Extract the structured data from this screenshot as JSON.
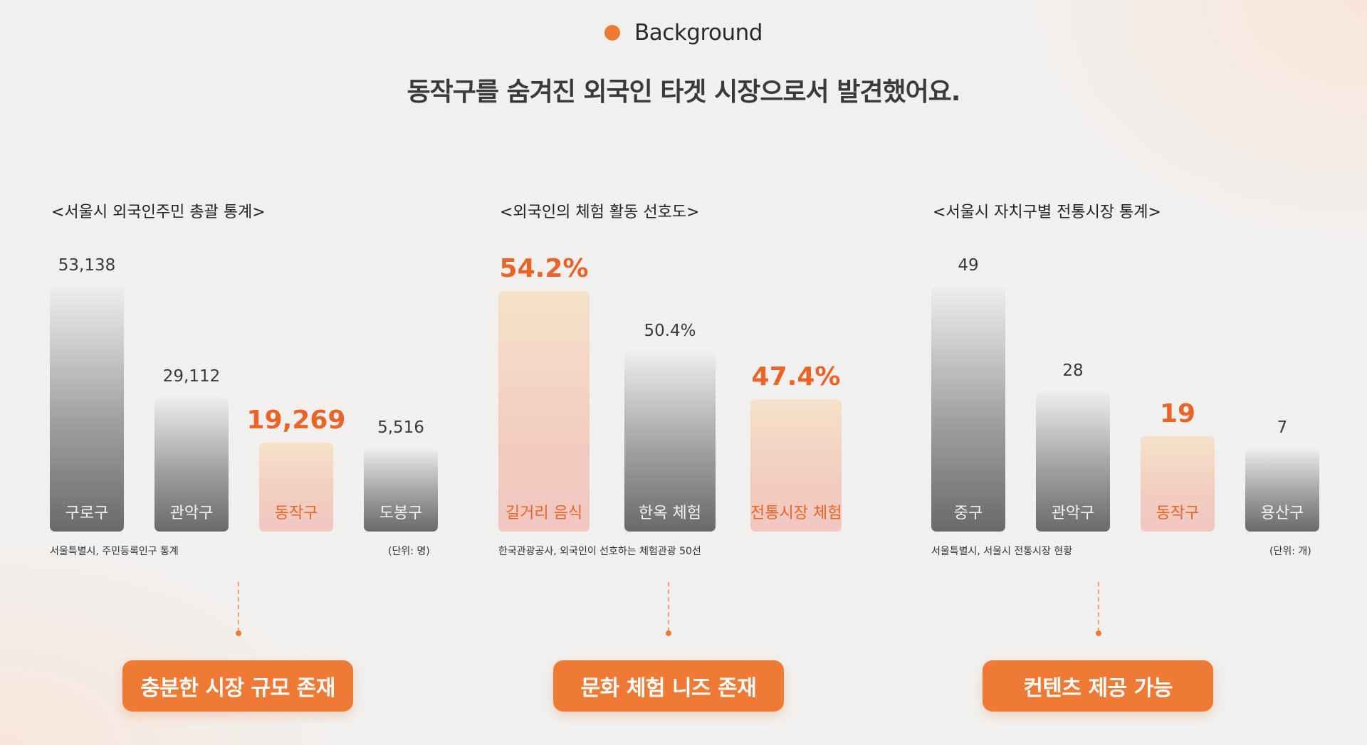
{
  "header": {
    "tag": "Background",
    "headline": "동작구를 숨겨진 외국인 타겟 시장으로서 발견했어요."
  },
  "chart_data": [
    {
      "type": "bar",
      "title": "<서울시 외국인주민 총괄 통계>",
      "categories": [
        "구로구",
        "관악구",
        "동작구",
        "도봉구"
      ],
      "values": [
        53138,
        29112,
        19269,
        5516
      ],
      "value_labels": [
        "53,138",
        "29,112",
        "19,269",
        "5,516"
      ],
      "highlight": [
        false,
        false,
        true,
        false
      ],
      "source": "서울특별시, 주민등록인구 통계",
      "unit": "(단위: 명)",
      "callout": "충분한 시장 규모 존재"
    },
    {
      "type": "bar",
      "title": "<외국인의 체험 활동 선호도>",
      "categories": [
        "길거리 음식",
        "한옥 체험",
        "전통시장 체험"
      ],
      "values": [
        54.2,
        50.4,
        47.4
      ],
      "value_labels": [
        "54.2%",
        "50.4%",
        "47.4%"
      ],
      "highlight": [
        true,
        false,
        true
      ],
      "source": "한국관광공사, 외국인이 선호하는 체험관광 50선",
      "unit": "",
      "callout": "문화 체험 니즈 존재"
    },
    {
      "type": "bar",
      "title": "<서울시 자치구별 전통시장 통계>",
      "categories": [
        "중구",
        "관악구",
        "동작구",
        "용산구"
      ],
      "values": [
        49,
        28,
        19,
        7
      ],
      "value_labels": [
        "49",
        "28",
        "19",
        "7"
      ],
      "highlight": [
        false,
        false,
        true,
        false
      ],
      "source": "서울특별시, 서울시 전통시장 현황",
      "unit": "(단위: 개)",
      "callout": "컨텐츠 제공 가능"
    }
  ],
  "colors": {
    "accent": "#ef7a35",
    "highlight_text": "#ea6327"
  }
}
